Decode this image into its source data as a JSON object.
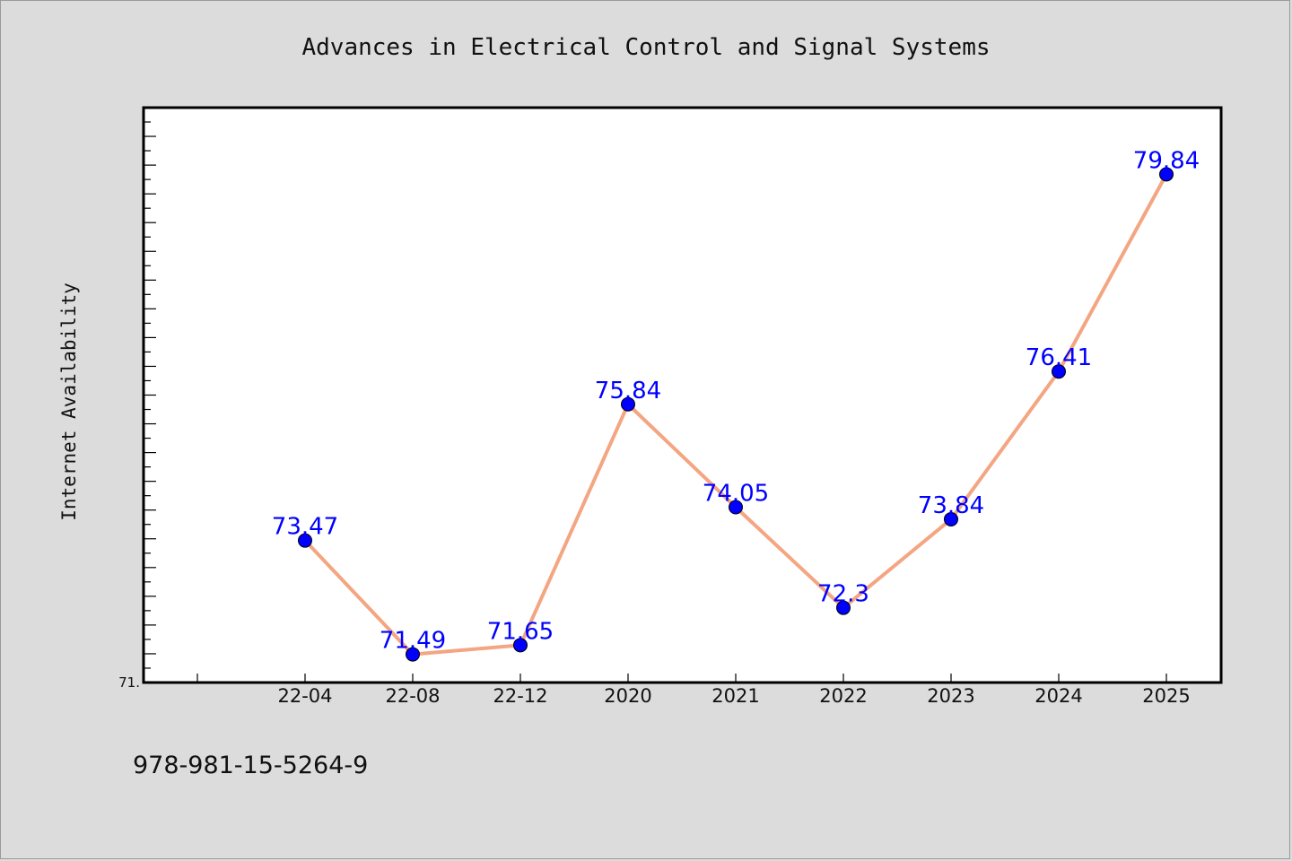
{
  "chart_data": {
    "type": "line",
    "title": "Advances in Electrical Control and Signal Systems",
    "xlabel": "",
    "ylabel": "Internet Availability",
    "categories": [
      "22-04",
      "22-08",
      "22-12",
      "2020",
      "2021",
      "2022",
      "2023",
      "2024",
      "2025"
    ],
    "series": [
      {
        "values": [
          73.47,
          71.49,
          71.65,
          75.84,
          74.05,
          72.3,
          73.84,
          76.41,
          79.84
        ]
      }
    ],
    "data_labels": [
      "73.47",
      "71.49",
      "71.65",
      "75.84",
      "74.05",
      "72.3",
      "73.84",
      "76.41",
      "79.84"
    ],
    "ylim": [
      71,
      81
    ],
    "ytick_labels": [
      {
        "value": 71,
        "label": "71."
      }
    ],
    "grid": false,
    "line_color": "#f4a582",
    "marker_color": "#0000ff",
    "label_color": "#0000ff"
  },
  "footnote": "978-981-15-5264-9"
}
